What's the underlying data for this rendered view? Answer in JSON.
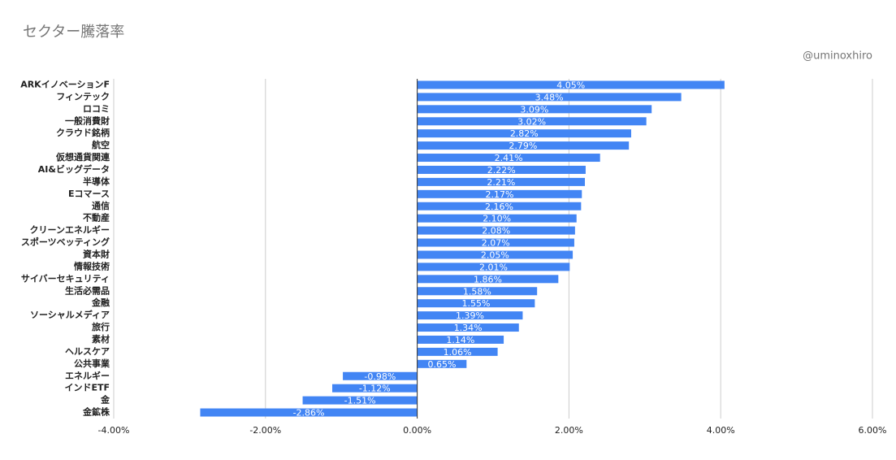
{
  "chart_data": {
    "type": "bar",
    "orientation": "horizontal",
    "title": "セクター騰落率",
    "subtitle": "@uminoxhiro",
    "categories": [
      "ARKイノベーションF",
      "フィンテック",
      "ロコミ",
      "一般消費財",
      "クラウド銘柄",
      "航空",
      "仮想通貨関連",
      "AI&ビッグデータ",
      "半導体",
      "Eコマース",
      "通信",
      "不動産",
      "クリーンエネルギー",
      "スポーツベッティング",
      "資本財",
      "情報技術",
      "サイバーセキュリティ",
      "生活必需品",
      "金融",
      "ソーシャルメディア",
      "旅行",
      "素材",
      "ヘルスケア",
      "公共事業",
      "エネルギー",
      "インドETF",
      "金",
      "金鉱株"
    ],
    "values": [
      4.05,
      3.48,
      3.09,
      3.02,
      2.82,
      2.79,
      2.41,
      2.22,
      2.21,
      2.17,
      2.16,
      2.1,
      2.08,
      2.07,
      2.05,
      2.01,
      1.86,
      1.58,
      1.55,
      1.39,
      1.34,
      1.14,
      1.06,
      0.65,
      -0.98,
      -1.12,
      -1.51,
      -2.86
    ],
    "value_labels": [
      "4.05%",
      "3.48%",
      "3.09%",
      "3.02%",
      "2.82%",
      "2.79%",
      "2.41%",
      "2.22%",
      "2.21%",
      "2.17%",
      "2.16%",
      "2.10%",
      "2.08%",
      "2.07%",
      "2.05%",
      "2.01%",
      "1.86%",
      "1.58%",
      "1.55%",
      "1.39%",
      "1.34%",
      "1.14%",
      "1.06%",
      "0.65%",
      "-0.98%",
      "-1.12%",
      "-1.51%",
      "-2.86%"
    ],
    "color": "#4285f4",
    "xlim": [
      -4,
      6
    ],
    "xticks": [
      {
        "value": -4,
        "label": "-4.00%"
      },
      {
        "value": -2,
        "label": "-2.00%"
      },
      {
        "value": 0,
        "label": "0.00%"
      },
      {
        "value": 2,
        "label": "2.00%"
      },
      {
        "value": 4,
        "label": "4.00%"
      },
      {
        "value": 6,
        "label": "6.00%"
      }
    ],
    "grid": true
  }
}
